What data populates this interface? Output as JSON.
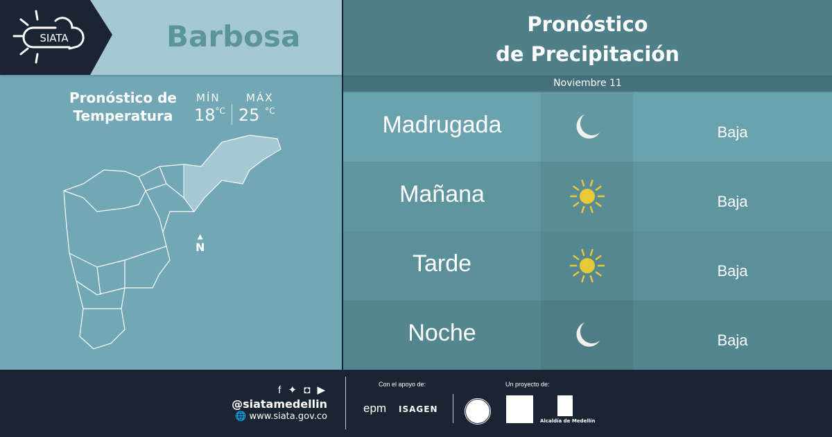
{
  "logo": {
    "text": "SIATA"
  },
  "city": "Barbosa",
  "temperature": {
    "title_line1": "Pronóstico de",
    "title_line2": "Temperatura",
    "min_label": "MÍN",
    "max_label": "MÁX",
    "min": "18",
    "max": "25",
    "unit": "°C"
  },
  "map": {
    "north_label": "N"
  },
  "forecast": {
    "title_line1": "Pronóstico",
    "title_line2": "de Precipitación",
    "date": "Noviembre 11",
    "rows": [
      {
        "period": "Madrugada",
        "icon": "moon-icon",
        "value": "Baja"
      },
      {
        "period": "Mañana",
        "icon": "sun-icon",
        "value": "Baja"
      },
      {
        "period": "Tarde",
        "icon": "sun-icon",
        "value": "Baja"
      },
      {
        "period": "Noche",
        "icon": "moon-icon",
        "value": "Baja"
      }
    ]
  },
  "footer": {
    "handle": "@siatamedellin",
    "website": "www.siata.gov.co",
    "support_label": "Con el apoyo de:",
    "project_label": "Un proyecto de:",
    "sponsor1": "epm",
    "sponsor2": "ISAGEN",
    "partner3": "Alcaldía de Medellín"
  },
  "colors": {
    "sun": "#e8c937",
    "moon": "#f1f1ef",
    "dark": "#1b2432"
  }
}
